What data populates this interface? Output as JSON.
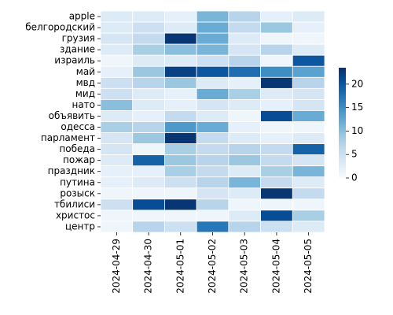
{
  "chart_data": {
    "type": "heatmap",
    "x": [
      "2024-04-29",
      "2024-04-30",
      "2024-05-01",
      "2024-05-02",
      "2024-05-03",
      "2024-05-04",
      "2024-05-05"
    ],
    "y": [
      "apple",
      "белгородский",
      "грузия",
      "здание",
      "израиль",
      "май",
      "мвд",
      "мид",
      "нато",
      "объявить",
      "одесса",
      "парламент",
      "победа",
      "пожар",
      "праздник",
      "путина",
      "розыск",
      "тбилиси",
      "христос",
      "центр"
    ],
    "values": [
      [
        3,
        3,
        2,
        11,
        7,
        2,
        3
      ],
      [
        3,
        5,
        3,
        12,
        6,
        9,
        2
      ],
      [
        4,
        6,
        23,
        12,
        3,
        1,
        1
      ],
      [
        3,
        8,
        10,
        11,
        4,
        7,
        3
      ],
      [
        1,
        3,
        3,
        5,
        7,
        1,
        20
      ],
      [
        2,
        9,
        22,
        20,
        18,
        15,
        13
      ],
      [
        5,
        7,
        9,
        3,
        2,
        23,
        7
      ],
      [
        5,
        3,
        2,
        12,
        8,
        3,
        4
      ],
      [
        10,
        3,
        2,
        4,
        3,
        2,
        4
      ],
      [
        3,
        2,
        6,
        3,
        1,
        21,
        12
      ],
      [
        8,
        7,
        14,
        12,
        2,
        1,
        1
      ],
      [
        4,
        9,
        23,
        6,
        3,
        2,
        3
      ],
      [
        4,
        1,
        8,
        6,
        7,
        6,
        19
      ],
      [
        3,
        19,
        9,
        7,
        9,
        6,
        4
      ],
      [
        2,
        2,
        8,
        6,
        3,
        8,
        11
      ],
      [
        2,
        3,
        5,
        7,
        11,
        6,
        3
      ],
      [
        1,
        1,
        1,
        4,
        3,
        23,
        6
      ],
      [
        5,
        21,
        23,
        7,
        1,
        1,
        1
      ],
      [
        1,
        1,
        1,
        1,
        3,
        21,
        8
      ],
      [
        1,
        7,
        5,
        17,
        7,
        5,
        3
      ]
    ],
    "zlim": [
      0,
      23.5
    ],
    "cticks": [
      0,
      5,
      10,
      15,
      20
    ],
    "colormap": [
      "#f7fbff",
      "#deebf7",
      "#c6dbef",
      "#9ecae1",
      "#6baed6",
      "#4292c6",
      "#2171b5",
      "#08519c",
      "#08306b"
    ]
  }
}
